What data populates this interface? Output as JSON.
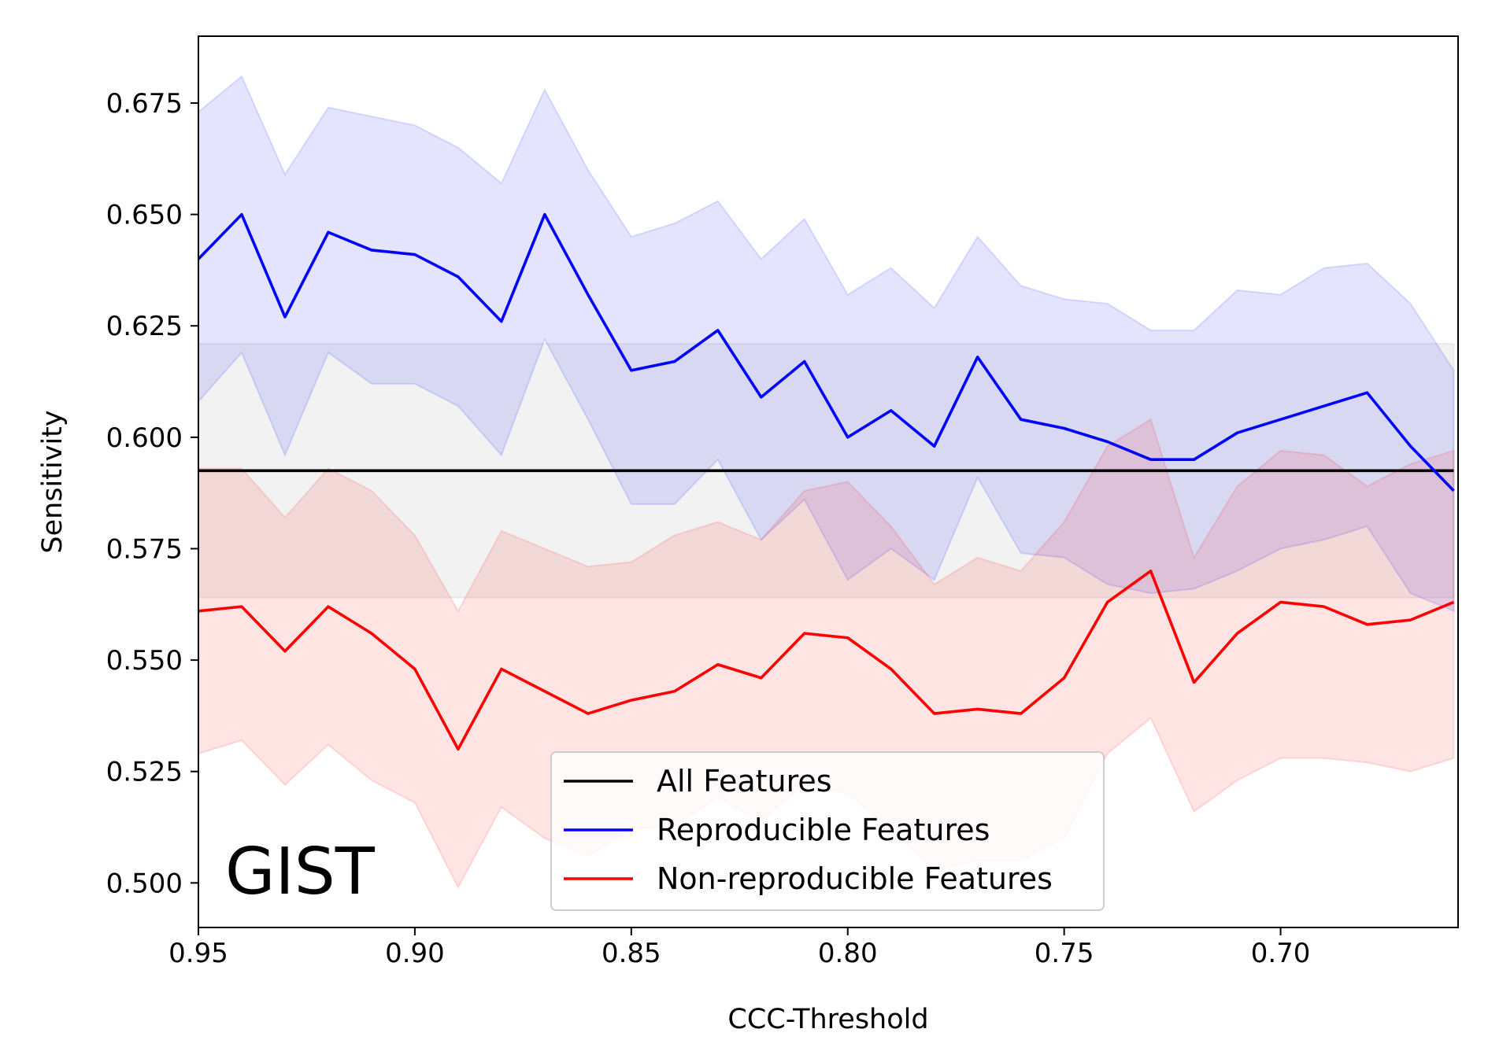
{
  "chart_data": {
    "type": "line",
    "panel_label": "GIST",
    "xlabel": "CCC-Threshold",
    "ylabel": "Sensitivity",
    "xlim": [
      0.95,
      0.659
    ],
    "ylim": [
      0.49,
      0.69
    ],
    "x_inverted": true,
    "grid": false,
    "legend_placement": "lower-center",
    "xticks": [
      0.95,
      0.9,
      0.85,
      0.8,
      0.75,
      0.7
    ],
    "xtick_labels": [
      "0.95",
      "0.90",
      "0.85",
      "0.80",
      "0.75",
      "0.70"
    ],
    "yticks": [
      0.5,
      0.525,
      0.55,
      0.575,
      0.6,
      0.625,
      0.65,
      0.675
    ],
    "ytick_labels": [
      "0.500",
      "0.525",
      "0.550",
      "0.575",
      "0.600",
      "0.625",
      "0.650",
      "0.675"
    ],
    "x": [
      0.95,
      0.94,
      0.93,
      0.92,
      0.91,
      0.9,
      0.89,
      0.88,
      0.87,
      0.86,
      0.85,
      0.84,
      0.83,
      0.82,
      0.81,
      0.8,
      0.79,
      0.78,
      0.77,
      0.76,
      0.75,
      0.74,
      0.73,
      0.72,
      0.71,
      0.7,
      0.69,
      0.68,
      0.67,
      0.66
    ],
    "series": [
      {
        "name": "All Features",
        "color": "#000000",
        "band_color": "#808080",
        "values": [
          0.5925,
          0.5925,
          0.5925,
          0.5925,
          0.5925,
          0.5925,
          0.5925,
          0.5925,
          0.5925,
          0.5925,
          0.5925,
          0.5925,
          0.5925,
          0.5925,
          0.5925,
          0.5925,
          0.5925,
          0.5925,
          0.5925,
          0.5925,
          0.5925,
          0.5925,
          0.5925,
          0.5925,
          0.5925,
          0.5925,
          0.5925,
          0.5925,
          0.5925,
          0.5925
        ],
        "lower": [
          0.564,
          0.564,
          0.564,
          0.564,
          0.564,
          0.564,
          0.564,
          0.564,
          0.564,
          0.564,
          0.564,
          0.564,
          0.564,
          0.564,
          0.564,
          0.564,
          0.564,
          0.564,
          0.564,
          0.564,
          0.564,
          0.564,
          0.564,
          0.564,
          0.564,
          0.564,
          0.564,
          0.564,
          0.564,
          0.564
        ],
        "upper": [
          0.621,
          0.621,
          0.621,
          0.621,
          0.621,
          0.621,
          0.621,
          0.621,
          0.621,
          0.621,
          0.621,
          0.621,
          0.621,
          0.621,
          0.621,
          0.621,
          0.621,
          0.621,
          0.621,
          0.621,
          0.621,
          0.621,
          0.621,
          0.621,
          0.621,
          0.621,
          0.621,
          0.621,
          0.621,
          0.621
        ]
      },
      {
        "name": "Reproducible Features",
        "color": "#0000ff",
        "band_color": "#0000ff",
        "values": [
          0.64,
          0.65,
          0.627,
          0.646,
          0.642,
          0.641,
          0.636,
          0.626,
          0.65,
          0.632,
          0.615,
          0.617,
          0.624,
          0.609,
          0.617,
          0.6,
          0.606,
          0.598,
          0.618,
          0.604,
          0.602,
          0.599,
          0.595,
          0.595,
          0.601,
          0.604,
          0.607,
          0.61,
          0.598,
          0.588
        ],
        "lower": [
          0.608,
          0.619,
          0.596,
          0.619,
          0.612,
          0.612,
          0.607,
          0.596,
          0.622,
          0.604,
          0.585,
          0.585,
          0.595,
          0.577,
          0.586,
          0.568,
          0.575,
          0.568,
          0.591,
          0.574,
          0.573,
          0.567,
          0.565,
          0.566,
          0.57,
          0.575,
          0.577,
          0.58,
          0.565,
          0.561
        ],
        "upper": [
          0.673,
          0.681,
          0.659,
          0.674,
          0.672,
          0.67,
          0.665,
          0.657,
          0.678,
          0.66,
          0.645,
          0.648,
          0.653,
          0.64,
          0.649,
          0.632,
          0.638,
          0.629,
          0.645,
          0.634,
          0.631,
          0.63,
          0.624,
          0.624,
          0.633,
          0.632,
          0.638,
          0.639,
          0.63,
          0.615
        ]
      },
      {
        "name": "Non-reproducible Features",
        "color": "#ff0000",
        "band_color": "#ff0000",
        "values": [
          0.561,
          0.562,
          0.552,
          0.562,
          0.556,
          0.548,
          0.53,
          0.548,
          0.543,
          0.538,
          0.541,
          0.543,
          0.549,
          0.546,
          0.556,
          0.555,
          0.548,
          0.538,
          0.539,
          0.538,
          0.546,
          0.563,
          0.57,
          0.545,
          0.556,
          0.563,
          0.562,
          0.558,
          0.559,
          0.563
        ],
        "lower": [
          0.529,
          0.532,
          0.522,
          0.531,
          0.523,
          0.518,
          0.499,
          0.517,
          0.51,
          0.506,
          0.512,
          0.513,
          0.519,
          0.514,
          0.522,
          0.52,
          0.512,
          0.503,
          0.505,
          0.505,
          0.51,
          0.529,
          0.537,
          0.516,
          0.523,
          0.528,
          0.528,
          0.527,
          0.525,
          0.528
        ],
        "upper": [
          0.593,
          0.593,
          0.582,
          0.593,
          0.588,
          0.578,
          0.561,
          0.579,
          0.575,
          0.571,
          0.572,
          0.578,
          0.581,
          0.577,
          0.588,
          0.59,
          0.58,
          0.567,
          0.573,
          0.57,
          0.581,
          0.598,
          0.604,
          0.573,
          0.589,
          0.597,
          0.596,
          0.589,
          0.594,
          0.597
        ]
      }
    ]
  }
}
